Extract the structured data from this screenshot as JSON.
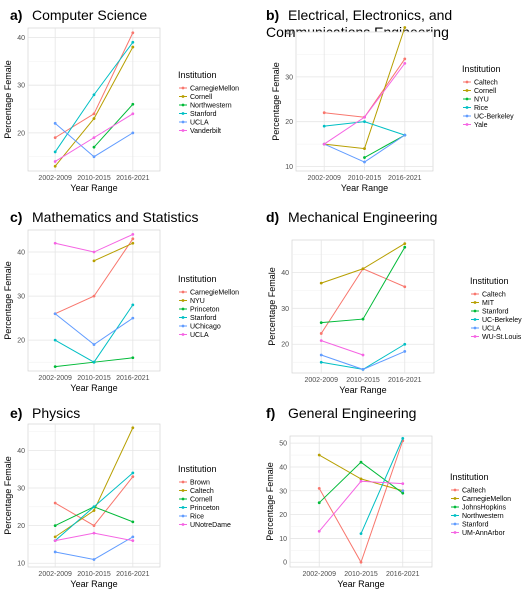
{
  "chart_data": [
    {
      "type": "line",
      "label": "a)",
      "title": "Computer Science",
      "xlabel": "Year Range",
      "ylabel": "Percentage Female",
      "categories": [
        "2002-2009",
        "2010-2015",
        "2016-2021"
      ],
      "yticks": [
        20,
        30,
        40
      ],
      "ylim": [
        12,
        42
      ],
      "legend_title": "Institution",
      "legend_position": "right",
      "series": [
        {
          "name": "CarnegieMellon",
          "color": "#F8766D",
          "values": [
            19,
            24,
            41
          ]
        },
        {
          "name": "Cornell",
          "color": "#B79F00",
          "values": [
            13,
            23,
            38
          ]
        },
        {
          "name": "Northwestern",
          "color": "#00BA38",
          "values": [
            null,
            17,
            26
          ]
        },
        {
          "name": "Stanford",
          "color": "#00BFC4",
          "values": [
            16,
            28,
            39
          ]
        },
        {
          "name": "UCLA",
          "color": "#619CFF",
          "values": [
            22,
            15,
            20
          ]
        },
        {
          "name": "Vanderbilt",
          "color": "#F564E3",
          "values": [
            14,
            19,
            24
          ]
        }
      ]
    },
    {
      "type": "line",
      "label": "b)",
      "title": "Electrical, Electronics, and Communications Engineering",
      "xlabel": "Year Range",
      "ylabel": "Percentage Female",
      "categories": [
        "2002-2009",
        "2010-2015",
        "2016-2021"
      ],
      "yticks": [
        10,
        20,
        30,
        40
      ],
      "ylim": [
        9,
        40
      ],
      "legend_title": "Institution",
      "legend_position": "right",
      "series": [
        {
          "name": "Caltech",
          "color": "#F8766D",
          "values": [
            22,
            21,
            34
          ]
        },
        {
          "name": "Cornell",
          "color": "#B79F00",
          "values": [
            15,
            14,
            41
          ]
        },
        {
          "name": "NYU",
          "color": "#00BA38",
          "values": [
            null,
            12,
            17
          ]
        },
        {
          "name": "Rice",
          "color": "#00BFC4",
          "values": [
            19,
            20,
            17
          ]
        },
        {
          "name": "UC-Berkeley",
          "color": "#619CFF",
          "values": [
            15,
            11,
            17
          ]
        },
        {
          "name": "Yale",
          "color": "#F564E3",
          "values": [
            15,
            21,
            33
          ]
        }
      ]
    },
    {
      "type": "line",
      "label": "c)",
      "title": "Mathematics and Statistics",
      "xlabel": "Year Range",
      "ylabel": "Percentage Female",
      "categories": [
        "2002-2009",
        "2010-2015",
        "2016-2021"
      ],
      "yticks": [
        20,
        30,
        40
      ],
      "ylim": [
        13,
        45
      ],
      "legend_title": "Institution",
      "legend_position": "right",
      "series": [
        {
          "name": "CarnegieMellon",
          "color": "#F8766D",
          "values": [
            26,
            30,
            43
          ]
        },
        {
          "name": "NYU",
          "color": "#B79F00",
          "values": [
            null,
            38,
            42
          ]
        },
        {
          "name": "Princeton",
          "color": "#00BA38",
          "values": [
            14,
            15,
            16
          ]
        },
        {
          "name": "Stanford",
          "color": "#00BFC4",
          "values": [
            20,
            15,
            28
          ]
        },
        {
          "name": "UChicago",
          "color": "#619CFF",
          "values": [
            26,
            19,
            25
          ]
        },
        {
          "name": "UCLA",
          "color": "#F564E3",
          "values": [
            42,
            40,
            44
          ]
        }
      ]
    },
    {
      "type": "line",
      "label": "d)",
      "title": "Mechanical Engineering",
      "xlabel": "Year Range",
      "ylabel": "Percentage Female",
      "categories": [
        "2002-2009",
        "2010-2015",
        "2016-2021"
      ],
      "yticks": [
        20,
        30,
        40
      ],
      "ylim": [
        12,
        49
      ],
      "legend_title": "Institution",
      "legend_position": "right",
      "series": [
        {
          "name": "Caltech",
          "color": "#F8766D",
          "values": [
            23,
            41,
            36
          ]
        },
        {
          "name": "MIT",
          "color": "#B79F00",
          "values": [
            37,
            41,
            48
          ]
        },
        {
          "name": "Stanford",
          "color": "#00BA38",
          "values": [
            26,
            27,
            47
          ]
        },
        {
          "name": "UC-Berkeley",
          "color": "#00BFC4",
          "values": [
            15,
            13,
            20
          ]
        },
        {
          "name": "UCLA",
          "color": "#619CFF",
          "values": [
            17,
            13,
            18
          ]
        },
        {
          "name": "WU-St.Louis",
          "color": "#F564E3",
          "values": [
            21,
            17,
            null
          ]
        }
      ]
    },
    {
      "type": "line",
      "label": "e)",
      "title": "Physics",
      "xlabel": "Year Range",
      "ylabel": "Percentage Female",
      "categories": [
        "2002-2009",
        "2010-2015",
        "2016-2021"
      ],
      "yticks": [
        10,
        20,
        30,
        40
      ],
      "ylim": [
        9,
        47
      ],
      "legend_title": "Institution",
      "legend_position": "right",
      "series": [
        {
          "name": "Brown",
          "color": "#F8766D",
          "values": [
            26,
            20,
            33
          ]
        },
        {
          "name": "Caltech",
          "color": "#B79F00",
          "values": [
            17,
            24,
            46
          ]
        },
        {
          "name": "Cornell",
          "color": "#00BA38",
          "values": [
            20,
            25,
            21
          ]
        },
        {
          "name": "Princeton",
          "color": "#00BFC4",
          "values": [
            16,
            25,
            34
          ]
        },
        {
          "name": "Rice",
          "color": "#619CFF",
          "values": [
            13,
            11,
            17
          ]
        },
        {
          "name": "UNotreDame",
          "color": "#F564E3",
          "values": [
            16,
            18,
            16
          ]
        }
      ]
    },
    {
      "type": "line",
      "label": "f)",
      "title": "General Engineering",
      "xlabel": "Year Range",
      "ylabel": "Percentage Female",
      "categories": [
        "2002-2009",
        "2010-2015",
        "2016-2021"
      ],
      "yticks": [
        0,
        10,
        20,
        30,
        40,
        50
      ],
      "ylim": [
        -2,
        53
      ],
      "legend_title": "Institution",
      "legend_position": "right",
      "series": [
        {
          "name": "Caltech",
          "color": "#F8766D",
          "values": [
            31,
            0,
            51
          ]
        },
        {
          "name": "CarnegieMellon",
          "color": "#B79F00",
          "values": [
            45,
            35,
            30
          ]
        },
        {
          "name": "JohnsHopkins",
          "color": "#00BA38",
          "values": [
            25,
            42,
            29
          ]
        },
        {
          "name": "Northwestern",
          "color": "#00BFC4",
          "values": [
            null,
            12,
            52
          ]
        },
        {
          "name": "Stanford",
          "color": "#619CFF",
          "values": [
            null,
            null,
            30
          ]
        },
        {
          "name": "UM-AnnArbor",
          "color": "#F564E3",
          "values": [
            13,
            34,
            33
          ]
        }
      ]
    }
  ]
}
